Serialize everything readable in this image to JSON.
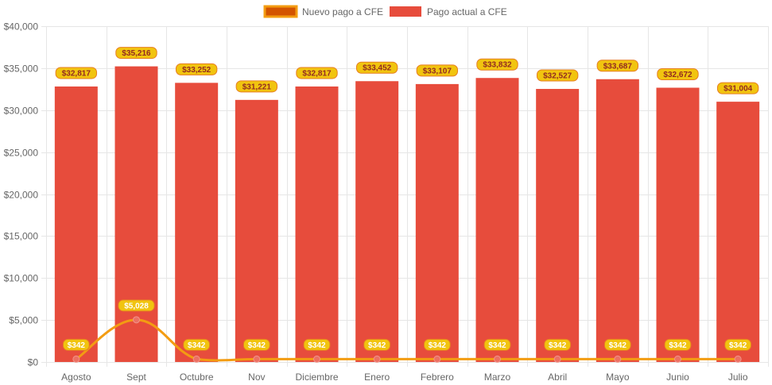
{
  "chart_data": {
    "type": "bar",
    "categories": [
      "Agosto",
      "Sept",
      "Octubre",
      "Nov",
      "Diciembre",
      "Enero",
      "Febrero",
      "Marzo",
      "Abril",
      "Mayo",
      "Junio",
      "Julio"
    ],
    "series": [
      {
        "name": "Nuevo pago a CFE",
        "type": "line",
        "values": [
          342,
          5028,
          342,
          342,
          342,
          342,
          342,
          342,
          342,
          342,
          342,
          342
        ],
        "labels": [
          "$342",
          "$5,028",
          "$342",
          "$342",
          "$342",
          "$342",
          "$342",
          "$342",
          "$342",
          "$342",
          "$342",
          "$342"
        ],
        "color": "#f39c12",
        "legend_fill": "#d35400"
      },
      {
        "name": "Pago actual a CFE",
        "type": "bar",
        "values": [
          32817,
          35216,
          33252,
          31221,
          32817,
          33452,
          33107,
          33832,
          32527,
          33687,
          32672,
          31004
        ],
        "labels": [
          "$32,817",
          "$35,216",
          "$33,252",
          "$31,221",
          "$32,817",
          "$33,452",
          "$33,107",
          "$33,832",
          "$32,527",
          "$33,687",
          "$32,672",
          "$31,004"
        ],
        "color": "#e74c3c"
      }
    ],
    "y_ticks": [
      "$0",
      "$5,000",
      "$10,000",
      "$15,000",
      "$20,000",
      "$25,000",
      "$30,000",
      "$35,000",
      "$40,000"
    ],
    "ylim": [
      0,
      40000
    ],
    "grid": true,
    "legend": "top-center"
  }
}
